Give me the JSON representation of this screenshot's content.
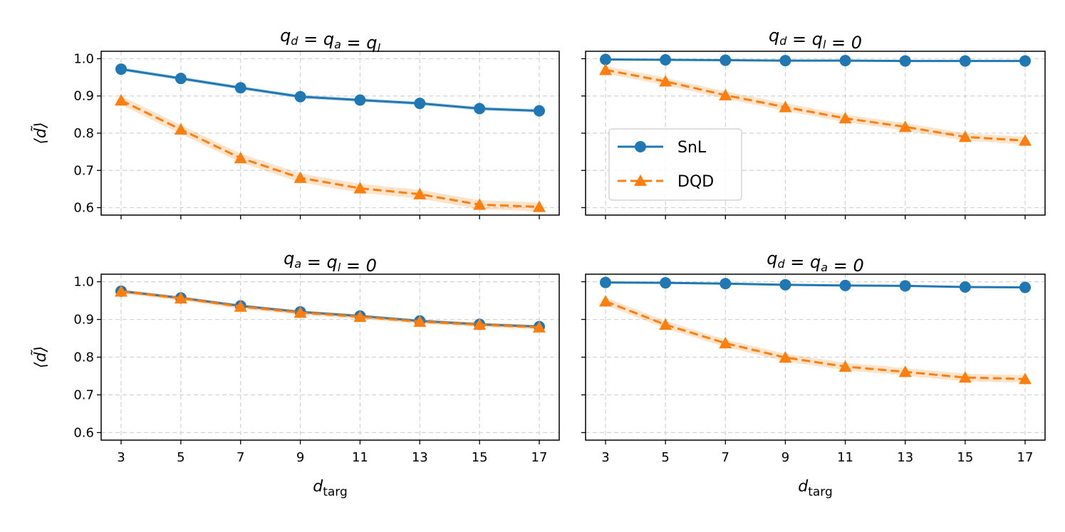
{
  "chart_data": [
    {
      "type": "line",
      "title": "q_d = q_a = q_l",
      "title_parts": {
        "t1": "q",
        "s1": "d",
        "t2": " = q",
        "s2": "a",
        "t3": " = q",
        "s3": "l",
        "t4": ""
      },
      "x": [
        3,
        5,
        7,
        9,
        11,
        13,
        15,
        17
      ],
      "ylim": [
        0.58,
        1.02
      ],
      "ylabel": "⟨d̃⟩",
      "xlabel": "",
      "grid": true,
      "series": [
        {
          "name": "SnL",
          "values": [
            0.972,
            0.947,
            0.922,
            0.898,
            0.889,
            0.88,
            0.866,
            0.86
          ],
          "band": 0.005
        },
        {
          "name": "DQD",
          "values": [
            0.888,
            0.81,
            0.733,
            0.68,
            0.652,
            0.636,
            0.608,
            0.602
          ],
          "band": 0.012
        }
      ]
    },
    {
      "type": "line",
      "title": "q_d = q_l = 0",
      "title_parts": {
        "t1": "q",
        "s1": "d",
        "t2": " = q",
        "s2": "l",
        "t3": " = 0",
        "s3": "",
        "t4": ""
      },
      "x": [
        3,
        5,
        7,
        9,
        11,
        13,
        15,
        17
      ],
      "ylim": [
        0.58,
        1.02
      ],
      "ylabel": "",
      "xlabel": "",
      "grid": true,
      "legend": {
        "position": "center-left",
        "entries": [
          "SnL",
          "DQD"
        ]
      },
      "series": [
        {
          "name": "SnL",
          "values": [
            0.998,
            0.997,
            0.996,
            0.995,
            0.995,
            0.994,
            0.994,
            0.994
          ],
          "band": 0.002
        },
        {
          "name": "DQD",
          "values": [
            0.97,
            0.939,
            0.902,
            0.87,
            0.84,
            0.817,
            0.79,
            0.78
          ],
          "band": 0.01
        }
      ]
    },
    {
      "type": "line",
      "title": "q_a = q_l = 0",
      "title_parts": {
        "t1": "q",
        "s1": "a",
        "t2": " = q",
        "s2": "l",
        "t3": " = 0",
        "s3": "",
        "t4": ""
      },
      "x": [
        3,
        5,
        7,
        9,
        11,
        13,
        15,
        17
      ],
      "ylim": [
        0.58,
        1.02
      ],
      "ylabel": "⟨d̃⟩",
      "xlabel": "d_targ",
      "grid": true,
      "series": [
        {
          "name": "SnL",
          "values": [
            0.975,
            0.957,
            0.936,
            0.92,
            0.909,
            0.896,
            0.887,
            0.881
          ],
          "band": 0.004
        },
        {
          "name": "DQD",
          "values": [
            0.974,
            0.956,
            0.934,
            0.918,
            0.907,
            0.894,
            0.886,
            0.879
          ],
          "band": 0.006
        }
      ]
    },
    {
      "type": "line",
      "title": "q_d = q_a = 0",
      "title_parts": {
        "t1": "q",
        "s1": "d",
        "t2": " = q",
        "s2": "a",
        "t3": " = 0",
        "s3": "",
        "t4": ""
      },
      "x": [
        3,
        5,
        7,
        9,
        11,
        13,
        15,
        17
      ],
      "ylim": [
        0.58,
        1.02
      ],
      "ylabel": "",
      "xlabel": "d_targ",
      "grid": true,
      "series": [
        {
          "name": "SnL",
          "values": [
            0.998,
            0.997,
            0.995,
            0.992,
            0.99,
            0.989,
            0.986,
            0.985
          ],
          "band": 0.002
        },
        {
          "name": "DQD",
          "values": [
            0.948,
            0.886,
            0.837,
            0.799,
            0.775,
            0.761,
            0.746,
            0.742
          ],
          "band": 0.01
        }
      ]
    }
  ],
  "axes": {
    "y_ticks": [
      0.6,
      0.7,
      0.8,
      0.9,
      1.0
    ],
    "y_tick_labels": [
      "0.6",
      "0.7",
      "0.8",
      "0.9",
      "1.0"
    ],
    "x_ticks": [
      3,
      5,
      7,
      9,
      11,
      13,
      15,
      17
    ],
    "x_tick_labels": [
      "3",
      "5",
      "7",
      "9",
      "11",
      "13",
      "15",
      "17"
    ],
    "xlabel_main": "d",
    "xlabel_sub": "targ",
    "ylabel": "⟨d̃⟩"
  },
  "legend": [
    {
      "label": "SnL",
      "color": "#1f77b4",
      "marker": "circle",
      "linestyle": "solid"
    },
    {
      "label": "DQD",
      "color": "#ff7f0e",
      "marker": "triangle",
      "linestyle": "dashed"
    }
  ],
  "colors": {
    "snl": "#1f77b4",
    "dqd": "#ff7f0e",
    "grid": "#d3d3d3"
  }
}
